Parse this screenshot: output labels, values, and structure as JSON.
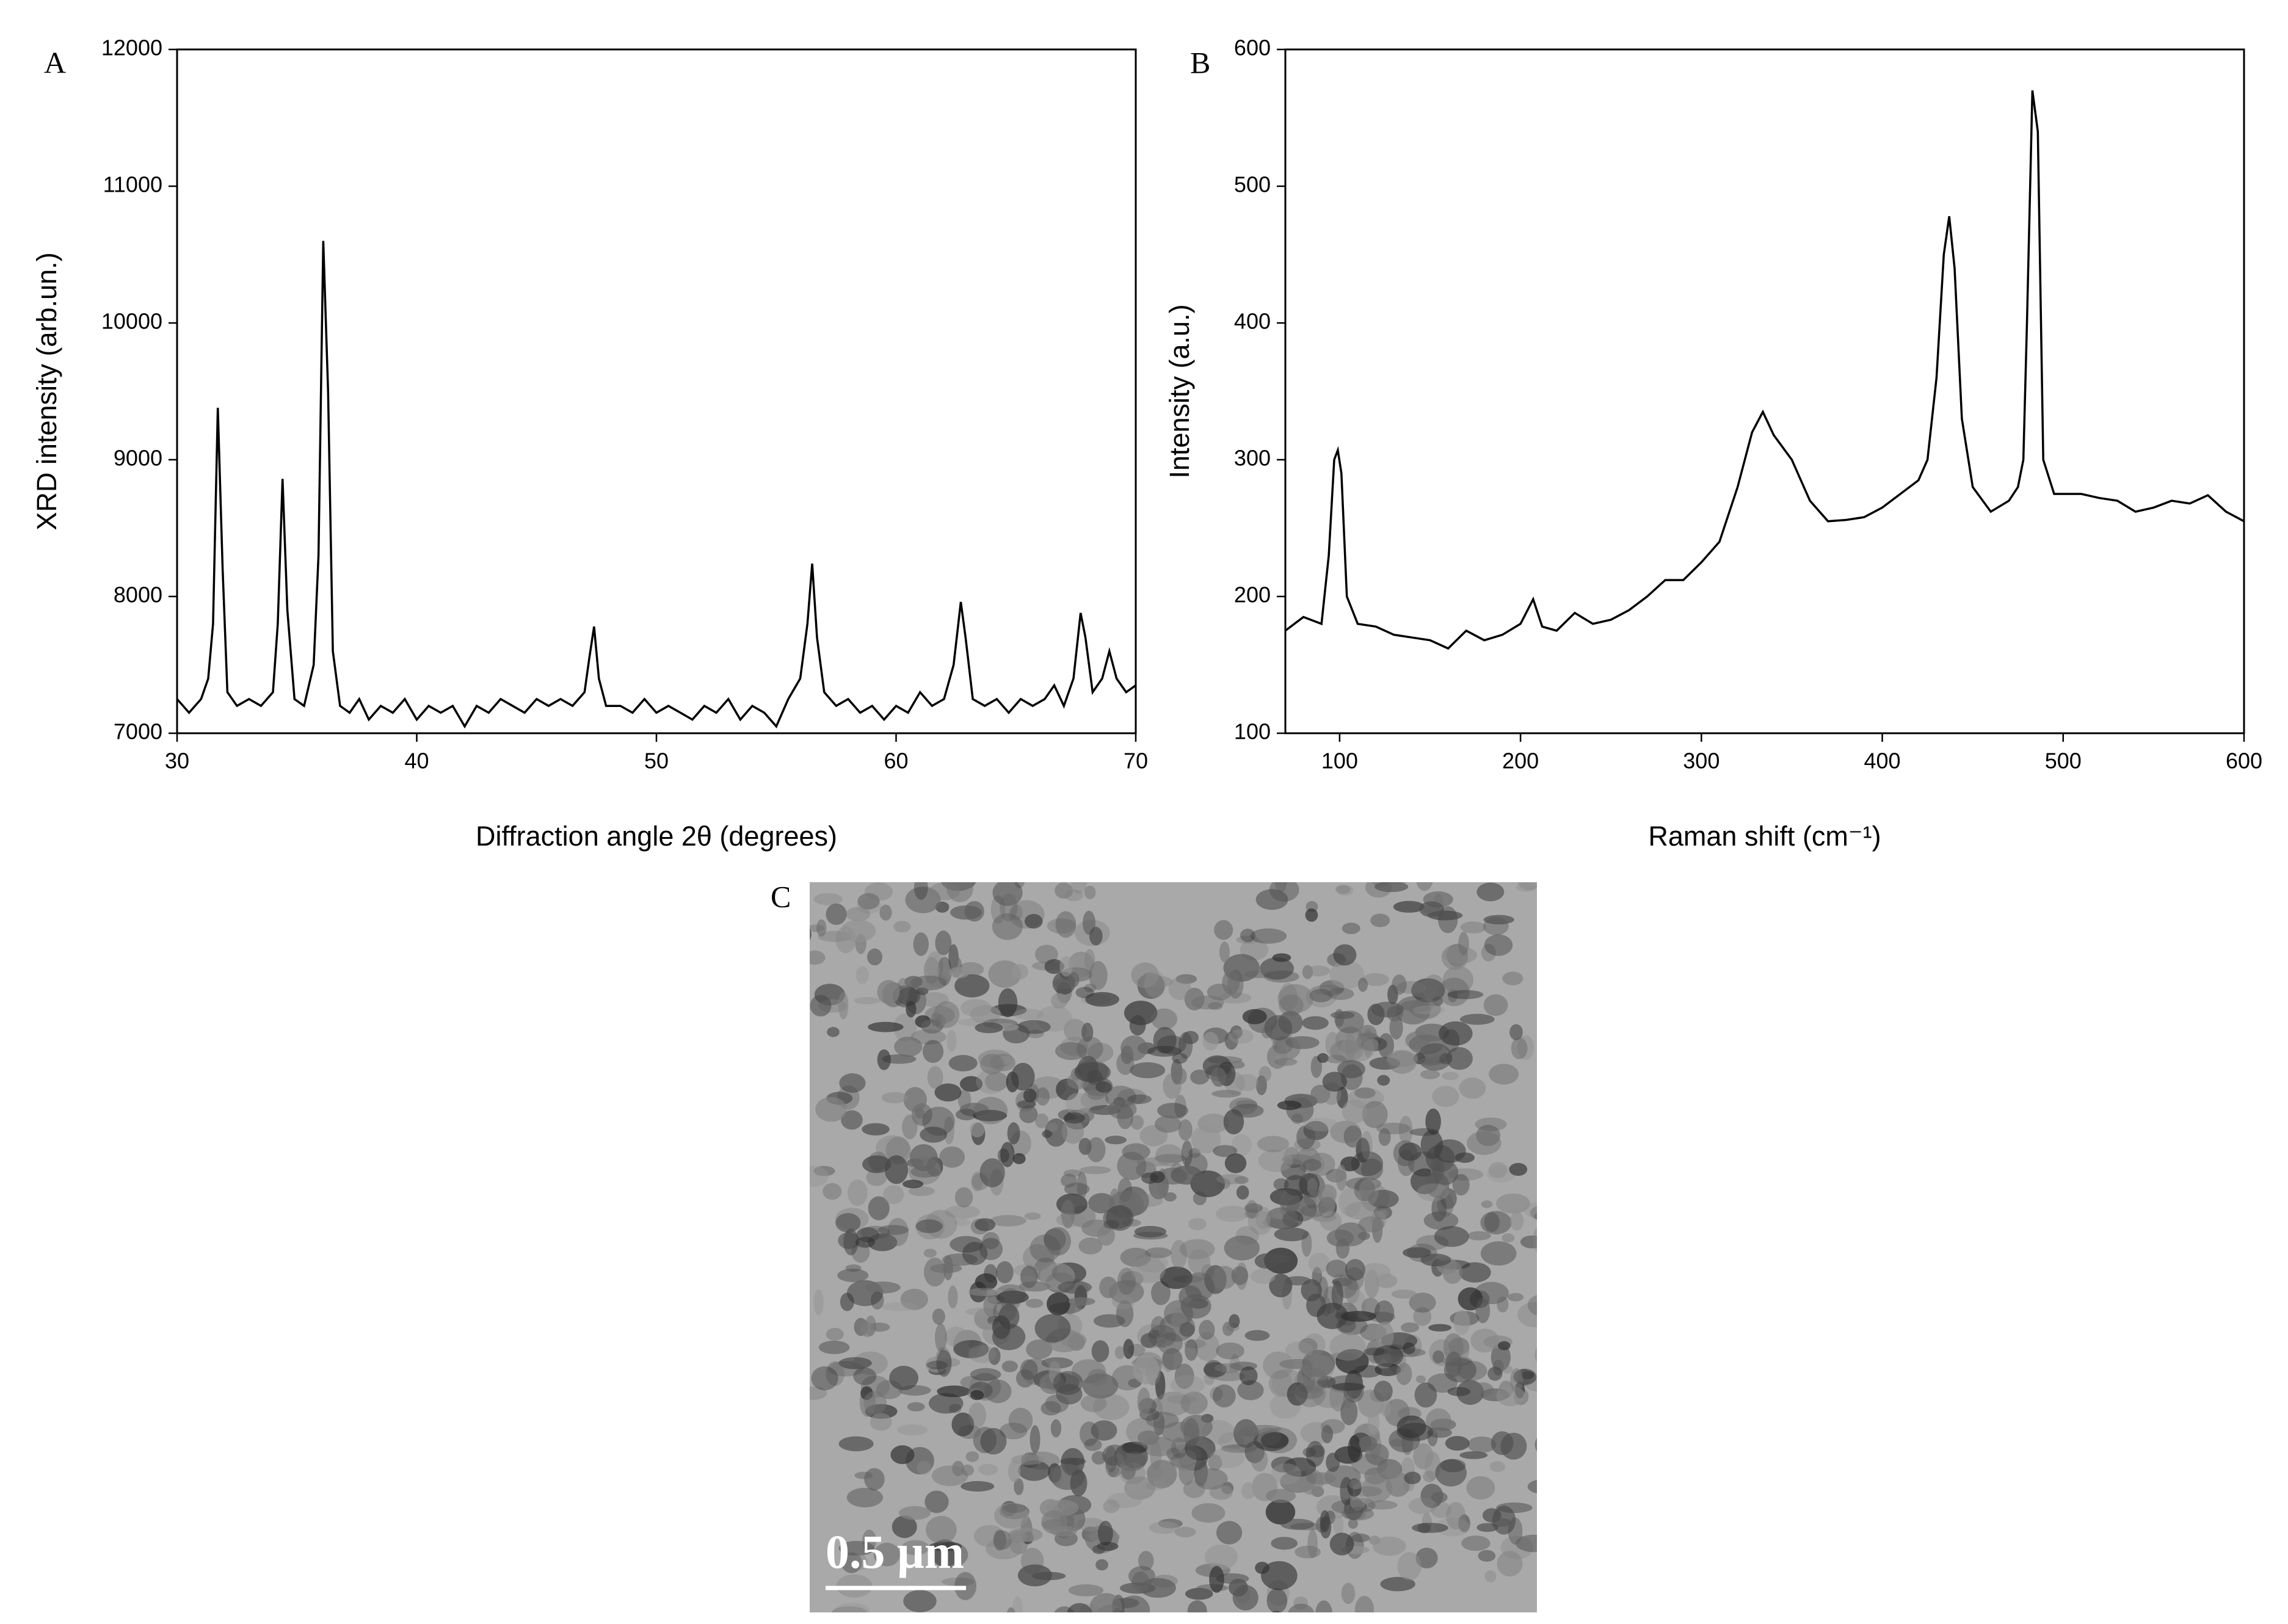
{
  "figure": {
    "panel_labels": [
      "A",
      "B",
      "C"
    ],
    "scale_bar": "0.5 µm"
  },
  "chart_data": [
    {
      "type": "line",
      "xlabel": "Diffraction angle 2θ (degrees)",
      "ylabel": "XRD intensity (arb.un.)",
      "xlim": [
        30,
        70
      ],
      "xticks": [
        30,
        40,
        50,
        60,
        70
      ],
      "ylim": [
        7000,
        12000
      ],
      "yticks": [
        7000,
        8000,
        9000,
        10000,
        11000,
        12000
      ],
      "x": [
        30,
        30.5,
        31,
        31.3,
        31.5,
        31.7,
        31.9,
        32.1,
        32.5,
        33,
        33.5,
        34,
        34.2,
        34.4,
        34.6,
        34.9,
        35.3,
        35.7,
        35.9,
        36.1,
        36.3,
        36.5,
        36.8,
        37.2,
        37.6,
        38,
        38.5,
        39,
        39.5,
        40,
        40.5,
        41,
        41.5,
        42,
        42.5,
        43,
        43.5,
        44,
        44.5,
        45,
        45.5,
        46,
        46.5,
        47,
        47.2,
        47.4,
        47.6,
        47.9,
        48.5,
        49,
        49.5,
        50,
        50.5,
        51,
        51.5,
        52,
        52.5,
        53,
        53.5,
        54,
        54.5,
        55,
        55.5,
        56,
        56.3,
        56.5,
        56.7,
        57,
        57.5,
        58,
        58.5,
        59,
        59.5,
        60,
        60.5,
        61,
        61.5,
        62,
        62.4,
        62.7,
        62.9,
        63.2,
        63.7,
        64.2,
        64.7,
        65.2,
        65.7,
        66.2,
        66.6,
        67,
        67.4,
        67.7,
        67.9,
        68.2,
        68.6,
        68.9,
        69.2,
        69.6,
        70
      ],
      "series": [
        {
          "color": "#000000",
          "values": [
            7250,
            7150,
            7250,
            7400,
            7800,
            9380,
            8200,
            7300,
            7200,
            7250,
            7200,
            7300,
            7800,
            8860,
            7900,
            7250,
            7200,
            7500,
            8300,
            10600,
            9500,
            7600,
            7200,
            7150,
            7250,
            7100,
            7200,
            7150,
            7250,
            7100,
            7200,
            7150,
            7200,
            7050,
            7200,
            7150,
            7250,
            7200,
            7150,
            7250,
            7200,
            7250,
            7200,
            7300,
            7550,
            7780,
            7400,
            7200,
            7200,
            7150,
            7250,
            7150,
            7200,
            7150,
            7100,
            7200,
            7150,
            7250,
            7100,
            7200,
            7150,
            7050,
            7250,
            7400,
            7800,
            8240,
            7700,
            7300,
            7200,
            7250,
            7150,
            7200,
            7100,
            7200,
            7150,
            7300,
            7200,
            7250,
            7500,
            7960,
            7700,
            7250,
            7200,
            7250,
            7150,
            7250,
            7200,
            7250,
            7350,
            7200,
            7400,
            7880,
            7700,
            7300,
            7400,
            7600,
            7400,
            7300,
            7350
          ]
        }
      ]
    },
    {
      "type": "line",
      "xlabel": "Raman shift (cm⁻¹)",
      "ylabel": "Intensity (a.u.)",
      "xlim": [
        70,
        600
      ],
      "xticks": [
        100,
        200,
        300,
        400,
        500,
        600
      ],
      "ylim": [
        100,
        600
      ],
      "yticks": [
        100,
        200,
        300,
        400,
        500,
        600
      ],
      "x": [
        70,
        80,
        90,
        94,
        97,
        99,
        101,
        104,
        110,
        120,
        130,
        140,
        150,
        160,
        170,
        180,
        190,
        200,
        207,
        212,
        220,
        230,
        240,
        250,
        260,
        270,
        280,
        290,
        300,
        310,
        320,
        328,
        334,
        340,
        350,
        360,
        370,
        380,
        390,
        400,
        410,
        420,
        425,
        430,
        434,
        437,
        440,
        444,
        450,
        460,
        470,
        475,
        478,
        480,
        483,
        486,
        489,
        495,
        510,
        520,
        530,
        540,
        550,
        560,
        570,
        580,
        590,
        600
      ],
      "series": [
        {
          "color": "#000000",
          "values": [
            175,
            185,
            180,
            230,
            300,
            307,
            290,
            200,
            180,
            178,
            172,
            170,
            168,
            162,
            175,
            168,
            172,
            180,
            198,
            178,
            175,
            188,
            180,
            183,
            190,
            200,
            212,
            212,
            225,
            240,
            280,
            320,
            335,
            318,
            300,
            270,
            255,
            256,
            258,
            265,
            275,
            285,
            300,
            360,
            450,
            478,
            440,
            330,
            280,
            262,
            270,
            280,
            300,
            400,
            570,
            540,
            300,
            275,
            275,
            272,
            270,
            262,
            265,
            270,
            268,
            274,
            262,
            255
          ]
        }
      ]
    }
  ]
}
